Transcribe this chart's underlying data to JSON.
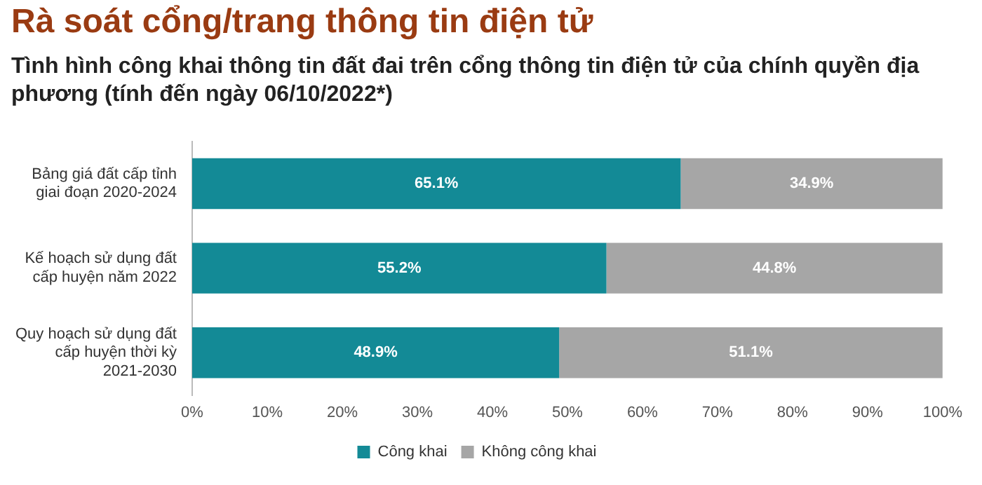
{
  "chart_data": {
    "type": "bar",
    "orientation": "horizontal",
    "stacked": true,
    "title": "Rà soát cổng/trang thông tin điện tử",
    "subtitle": "Tình hình công khai thông tin đất đai trên cổng thông tin điện tử của chính quyền địa phương (tính đến ngày 06/10/2022*)",
    "categories": [
      "Bảng giá đất cấp tỉnh giai đoạn 2020-2024",
      "Kế hoạch sử dụng đất cấp huyện năm 2022",
      "Quy hoạch sử dụng đất cấp huyện thời kỳ 2021-2030"
    ],
    "series": [
      {
        "name": "Công khai",
        "color": "#138a96",
        "values": [
          65.1,
          55.2,
          48.9
        ],
        "value_labels": [
          "65.1%",
          "55.2%",
          "48.9%"
        ]
      },
      {
        "name": "Không công khai",
        "color": "#a6a6a6",
        "values": [
          34.9,
          44.8,
          51.1
        ],
        "value_labels": [
          "34.9%",
          "44.8%",
          "51.1%"
        ]
      }
    ],
    "xlim": [
      0,
      100
    ],
    "xticks": [
      {
        "value": 0,
        "label": "0%"
      },
      {
        "value": 10,
        "label": "10%"
      },
      {
        "value": 20,
        "label": "20%"
      },
      {
        "value": 30,
        "label": "30%"
      },
      {
        "value": 40,
        "label": "40%"
      },
      {
        "value": 50,
        "label": "50%"
      },
      {
        "value": 60,
        "label": "60%"
      },
      {
        "value": 70,
        "label": "70%"
      },
      {
        "value": 80,
        "label": "80%"
      },
      {
        "value": 90,
        "label": "90%"
      },
      {
        "value": 100,
        "label": "100%"
      }
    ],
    "grid": false,
    "legend": "bottom"
  }
}
